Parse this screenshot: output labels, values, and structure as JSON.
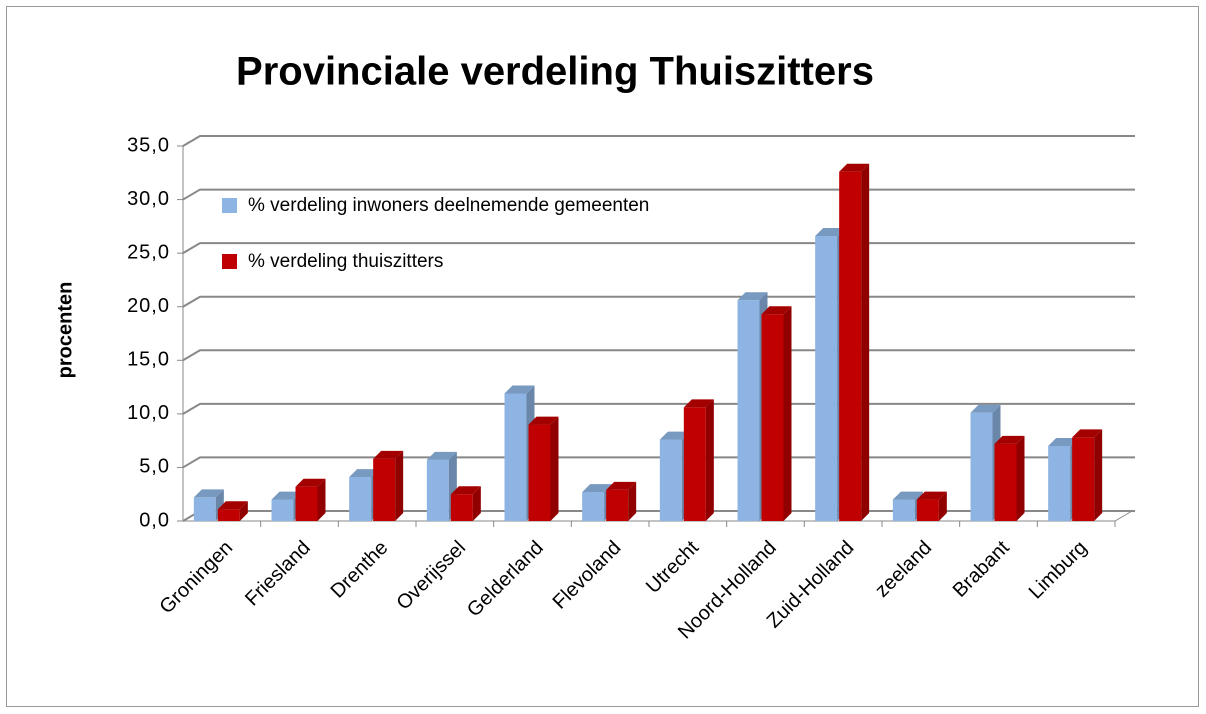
{
  "chart_data": {
    "type": "bar3d",
    "title": "Provinciale verdeling Thuiszitters",
    "y_label": "procenten",
    "categories": [
      "Groningen",
      "Friesland",
      "Drenthe",
      "Overijssel",
      "Gelderland",
      "Flevoland",
      "Utrecht",
      "Noord-Holland",
      "Zuid-Holland",
      "zeeland",
      "Brabant",
      "Limburg"
    ],
    "series": [
      {
        "name": "% verdeling inwoners deelnemende gemeenten",
        "color": "#8db4e2",
        "values": [
          2.2,
          2.0,
          4.1,
          5.7,
          11.9,
          2.7,
          7.6,
          20.6,
          26.6,
          2.0,
          10.1,
          7.0
        ]
      },
      {
        "name": "% verdeling thuiszitters",
        "color": "#c00000",
        "values": [
          1.1,
          3.2,
          5.8,
          2.5,
          9.0,
          2.9,
          10.6,
          19.3,
          32.6,
          2.0,
          7.2,
          7.8
        ]
      }
    ],
    "ylim": [
      0,
      35
    ],
    "yticks": [
      {
        "value": 0,
        "label": "0,0"
      },
      {
        "value": 5,
        "label": "5,0"
      },
      {
        "value": 10,
        "label": "10,0"
      },
      {
        "value": 15,
        "label": "15,0"
      },
      {
        "value": 20,
        "label": "20,0"
      },
      {
        "value": 25,
        "label": "25,0"
      },
      {
        "value": 30,
        "label": "30,0"
      },
      {
        "value": 35,
        "label": "35,0"
      }
    ],
    "grid": true,
    "legend": "top-left"
  }
}
